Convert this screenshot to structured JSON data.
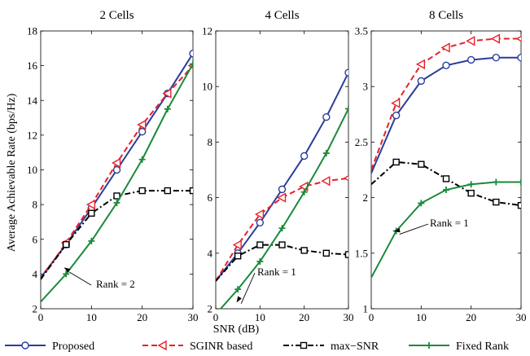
{
  "figure": {
    "ylabel": "Average Achievable Rate (bps/Hz)",
    "xlabel": "SNR (dB)"
  },
  "legend": [
    {
      "name": "Proposed",
      "color": "#2a3d9b",
      "marker": "circle",
      "dash": "solid"
    },
    {
      "name": "SGINR based",
      "color": "#e8202a",
      "marker": "triangle-left",
      "dash": "dashed"
    },
    {
      "name": "max−SNR",
      "color": "#000000",
      "marker": "square",
      "dash": "dashdot"
    },
    {
      "name": "Fixed Rank",
      "color": "#1a8a3a",
      "marker": "plus",
      "dash": "solid"
    }
  ],
  "chart_data": [
    {
      "type": "line",
      "title": "2 Cells",
      "x": [
        0,
        5,
        10,
        15,
        20,
        25,
        30
      ],
      "xlim": [
        0,
        30
      ],
      "ylim": [
        2,
        18
      ],
      "xticks": [
        0,
        10,
        20,
        30
      ],
      "yticks": [
        2,
        4,
        6,
        8,
        10,
        12,
        14,
        16,
        18
      ],
      "series": [
        {
          "name": "Proposed",
          "values": [
            3.8,
            5.7,
            7.8,
            10.0,
            12.2,
            14.4,
            16.7
          ]
        },
        {
          "name": "SGINR based",
          "values": [
            3.7,
            5.8,
            8.0,
            10.4,
            12.6,
            14.4,
            16.0
          ]
        },
        {
          "name": "max−SNR",
          "values": [
            3.7,
            5.7,
            7.5,
            8.5,
            8.8,
            8.8,
            8.8
          ]
        },
        {
          "name": "Fixed Rank",
          "values": [
            2.4,
            4.0,
            5.9,
            8.1,
            10.6,
            13.5,
            16.1
          ]
        }
      ],
      "annotation": {
        "text": "Rank = 2",
        "at": [
          5,
          4.3
        ]
      }
    },
    {
      "type": "line",
      "title": "4 Cells",
      "x": [
        0,
        5,
        10,
        15,
        20,
        25,
        30
      ],
      "xlim": [
        0,
        30
      ],
      "ylim": [
        2,
        12
      ],
      "xticks": [
        0,
        10,
        20,
        30
      ],
      "yticks": [
        2,
        4,
        6,
        8,
        10,
        12
      ],
      "series": [
        {
          "name": "Proposed",
          "values": [
            3.0,
            4.0,
            5.1,
            6.3,
            7.5,
            8.9,
            10.5
          ]
        },
        {
          "name": "SGINR based",
          "values": [
            3.0,
            4.3,
            5.4,
            6.0,
            6.4,
            6.6,
            6.7
          ]
        },
        {
          "name": "max−SNR",
          "values": [
            3.0,
            3.9,
            4.3,
            4.3,
            4.1,
            4.0,
            3.95
          ]
        },
        {
          "name": "Fixed Rank",
          "values": [
            1.8,
            2.7,
            3.7,
            4.9,
            6.2,
            7.6,
            9.2
          ]
        }
      ],
      "annotation": {
        "text": "Rank = 1",
        "at": [
          5,
          2.3
        ]
      }
    },
    {
      "type": "line",
      "title": "8 Cells",
      "x": [
        0,
        5,
        10,
        15,
        20,
        25,
        30
      ],
      "xlim": [
        0,
        30
      ],
      "ylim": [
        1,
        3.5
      ],
      "xticks": [
        0,
        10,
        20,
        30
      ],
      "yticks": [
        1,
        1.5,
        2,
        2.5,
        3,
        3.5
      ],
      "series": [
        {
          "name": "Proposed",
          "values": [
            2.22,
            2.74,
            3.05,
            3.19,
            3.24,
            3.26,
            3.26
          ]
        },
        {
          "name": "SGINR based",
          "values": [
            2.25,
            2.85,
            3.2,
            3.35,
            3.41,
            3.43,
            3.43
          ]
        },
        {
          "name": "max−SNR",
          "values": [
            2.12,
            2.32,
            2.3,
            2.17,
            2.04,
            1.96,
            1.93
          ]
        },
        {
          "name": "Fixed Rank",
          "values": [
            1.28,
            1.7,
            1.95,
            2.07,
            2.12,
            2.14,
            2.14
          ]
        }
      ],
      "annotation": {
        "text": "Rank = 1",
        "at": [
          5,
          1.7
        ]
      }
    }
  ]
}
